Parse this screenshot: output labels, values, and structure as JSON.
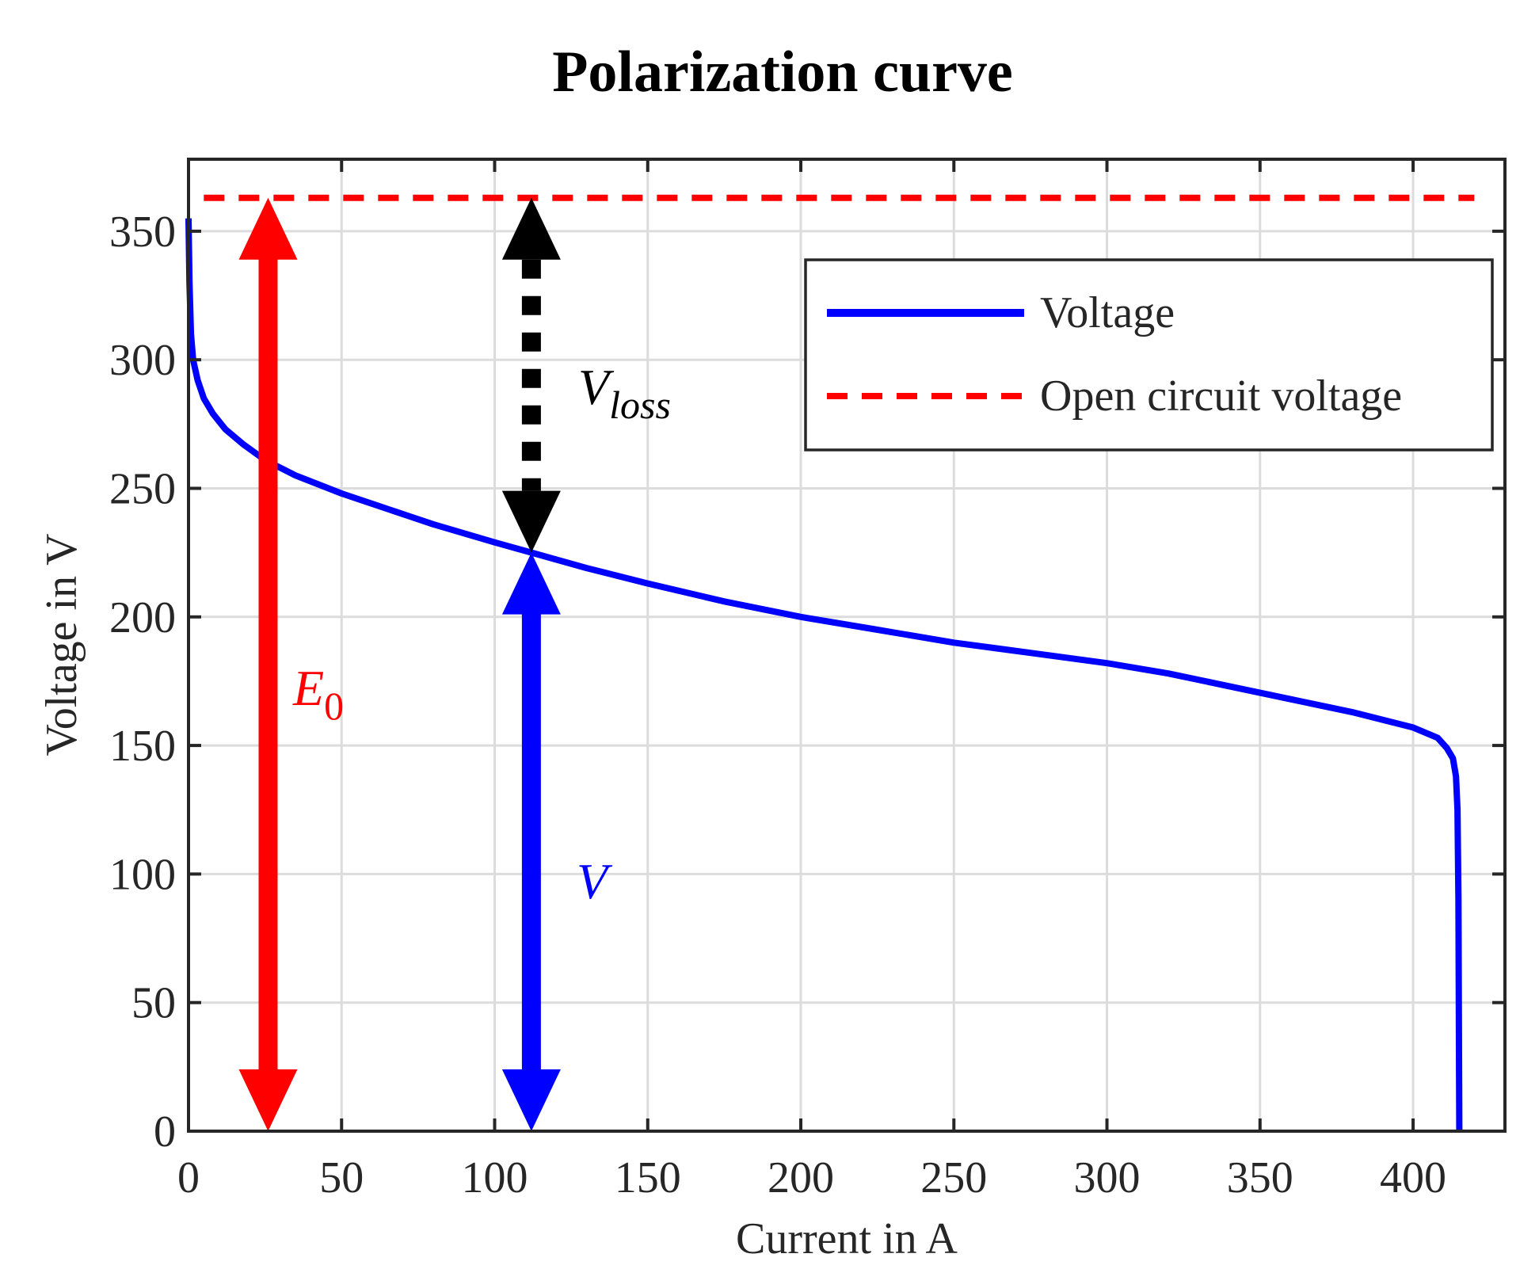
{
  "chart_data": {
    "type": "line",
    "title": "Polarization curve",
    "xlabel": "Current in A",
    "ylabel": "Voltage in V",
    "xlim": [
      0,
      430
    ],
    "ylim": [
      0,
      378
    ],
    "xticks": [
      0,
      50,
      100,
      150,
      200,
      250,
      300,
      350,
      400
    ],
    "yticks": [
      0,
      50,
      100,
      150,
      200,
      250,
      300,
      350
    ],
    "grid": true,
    "legend": {
      "placement": "top-right",
      "entries": [
        "Voltage",
        "Open circuit voltage"
      ]
    },
    "series": [
      {
        "name": "Voltage",
        "style": "solid",
        "color": "#0000ff",
        "points": [
          [
            0,
            355
          ],
          [
            0.3,
            330
          ],
          [
            0.8,
            310
          ],
          [
            1.5,
            300
          ],
          [
            3,
            292
          ],
          [
            5,
            285
          ],
          [
            8,
            279
          ],
          [
            12,
            273
          ],
          [
            18,
            267
          ],
          [
            25,
            261
          ],
          [
            35,
            255
          ],
          [
            50,
            248
          ],
          [
            65,
            242
          ],
          [
            80,
            236
          ],
          [
            100,
            229
          ],
          [
            112,
            225
          ],
          [
            130,
            219
          ],
          [
            150,
            213
          ],
          [
            175,
            206
          ],
          [
            200,
            200
          ],
          [
            225,
            195
          ],
          [
            250,
            190
          ],
          [
            275,
            186
          ],
          [
            300,
            182
          ],
          [
            320,
            178
          ],
          [
            340,
            173
          ],
          [
            360,
            168
          ],
          [
            380,
            163
          ],
          [
            400,
            157
          ],
          [
            408,
            153
          ],
          [
            411,
            149
          ],
          [
            413,
            145
          ],
          [
            414,
            138
          ],
          [
            414.5,
            125
          ],
          [
            414.8,
            90
          ],
          [
            415,
            30
          ],
          [
            415.1,
            0
          ]
        ]
      },
      {
        "name": "Open circuit voltage",
        "style": "dashed",
        "color": "#ff0000",
        "y": 363,
        "x_range": [
          5,
          420
        ]
      }
    ],
    "annotations": [
      {
        "label": "E",
        "subscript": "0",
        "x": 26,
        "y_from": 0,
        "y_to": 363,
        "color": "#ff0000",
        "style": "solid"
      },
      {
        "label": "V",
        "subscript": "",
        "x": 112,
        "y_from": 0,
        "y_to": 225,
        "color": "#0000ff",
        "style": "solid"
      },
      {
        "label": "V",
        "subscript": "loss",
        "x": 112,
        "y_from": 225,
        "y_to": 363,
        "color": "#000000",
        "style": "dotted"
      }
    ]
  }
}
